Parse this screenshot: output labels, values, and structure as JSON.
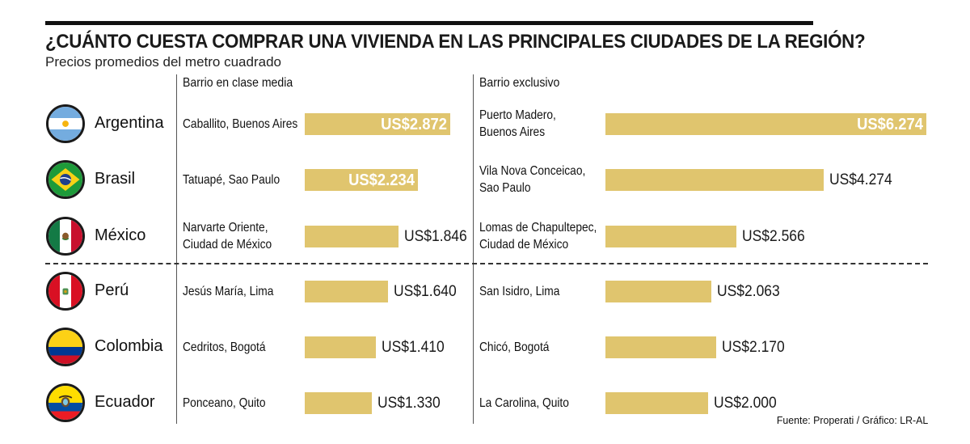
{
  "header": {
    "title": "¿CUÁNTO CUESTA COMPRAR UNA VIVIENDA EN LAS PRINCIPALES CIUDADES DE LA REGIÓN?",
    "subtitle": "Precios promedios del metro cuadrado"
  },
  "columns": {
    "media": "Barrio en clase media",
    "exclusivo": "Barrio exclusivo"
  },
  "source": "Fuente: Properati / Gráfico: LR-AL",
  "colors": {
    "bar": "#e0c56e",
    "text": "#1a1a1a"
  },
  "chart_data": {
    "type": "bar",
    "title": "¿CUÁNTO CUESTA COMPRAR UNA VIVIENDA EN LAS PRINCIPALES CIUDADES DE LA REGIÓN?",
    "subtitle": "Precios promedios del metro cuadrado",
    "unit": "US$ por metro cuadrado",
    "categories": [
      "Argentina",
      "Brasil",
      "México",
      "Perú",
      "Colombia",
      "Ecuador"
    ],
    "xlim": [
      0,
      6274
    ],
    "series": [
      {
        "name": "Barrio en clase media",
        "neighborhoods": [
          [
            "Caballito, Buenos Aires"
          ],
          [
            "Tatuapé, Sao Paulo"
          ],
          [
            "Narvarte Oriente,",
            "Ciudad de México"
          ],
          [
            "Jesús María, Lima"
          ],
          [
            "Cedritos, Bogotá"
          ],
          [
            "Ponceano, Quito"
          ]
        ],
        "values": [
          2872,
          2234,
          1846,
          1640,
          1410,
          1330
        ],
        "labels": [
          "US$2.872",
          "US$2.234",
          "US$1.846",
          "US$1.640",
          "US$1.410",
          "US$1.330"
        ]
      },
      {
        "name": "Barrio exclusivo",
        "neighborhoods": [
          [
            "Puerto Madero,",
            "Buenos Aires"
          ],
          [
            "Vila Nova Conceicao,",
            "Sao Paulo"
          ],
          [
            "Lomas de Chapultepec,",
            "Ciudad de México"
          ],
          [
            "San Isidro, Lima"
          ],
          [
            "Chicó, Bogotá"
          ],
          [
            "La Carolina, Quito"
          ]
        ],
        "values": [
          6274,
          4274,
          2566,
          2063,
          2170,
          2000
        ],
        "labels": [
          "US$6.274",
          "US$4.274",
          "US$2.566",
          "US$2.063",
          "US$2.170",
          "US$2.000"
        ]
      }
    ]
  }
}
